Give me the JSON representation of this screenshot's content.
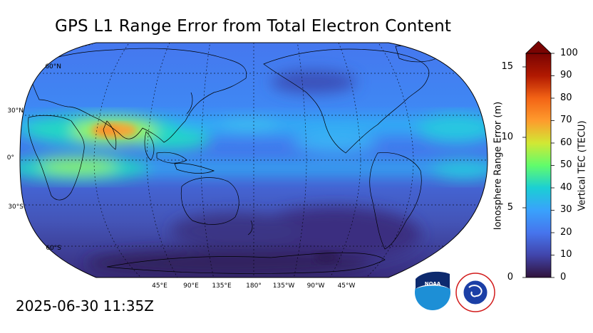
{
  "title": "GPS L1 Range Error from Total Electron Content",
  "timestamp": "2025-06-30 11:35Z",
  "map": {
    "projection": "Robinson, Pacific-centered",
    "lat_labels": [
      "60°N",
      "30°N",
      "0°",
      "30°S",
      "60°S"
    ],
    "lon_labels": [
      "45°E",
      "90°E",
      "135°E",
      "180°",
      "135°W",
      "90°W",
      "45°W"
    ]
  },
  "colorbar": {
    "left_axis_label": "Ionosphere Range Error (m)",
    "left_ticks": [
      "15",
      "10",
      "5",
      "0"
    ],
    "right_axis_label": "Vertical TEC (TECU)",
    "right_ticks": [
      "100",
      "90",
      "80",
      "70",
      "60",
      "50",
      "40",
      "30",
      "20",
      "10",
      "0"
    ],
    "extend": "max",
    "colors": [
      "#30123b",
      "#4145ab",
      "#4675ed",
      "#39a2fc",
      "#1bcfd4",
      "#24eca6",
      "#61fc6c",
      "#a4fc3b",
      "#d1e834",
      "#f3c63a",
      "#fe9b2d",
      "#f36315",
      "#d93806",
      "#b11901",
      "#7a0402"
    ]
  },
  "logos": {
    "noaa": "NOAA",
    "nws_ring": "NATIONAL WEATHER SERVICE"
  }
}
